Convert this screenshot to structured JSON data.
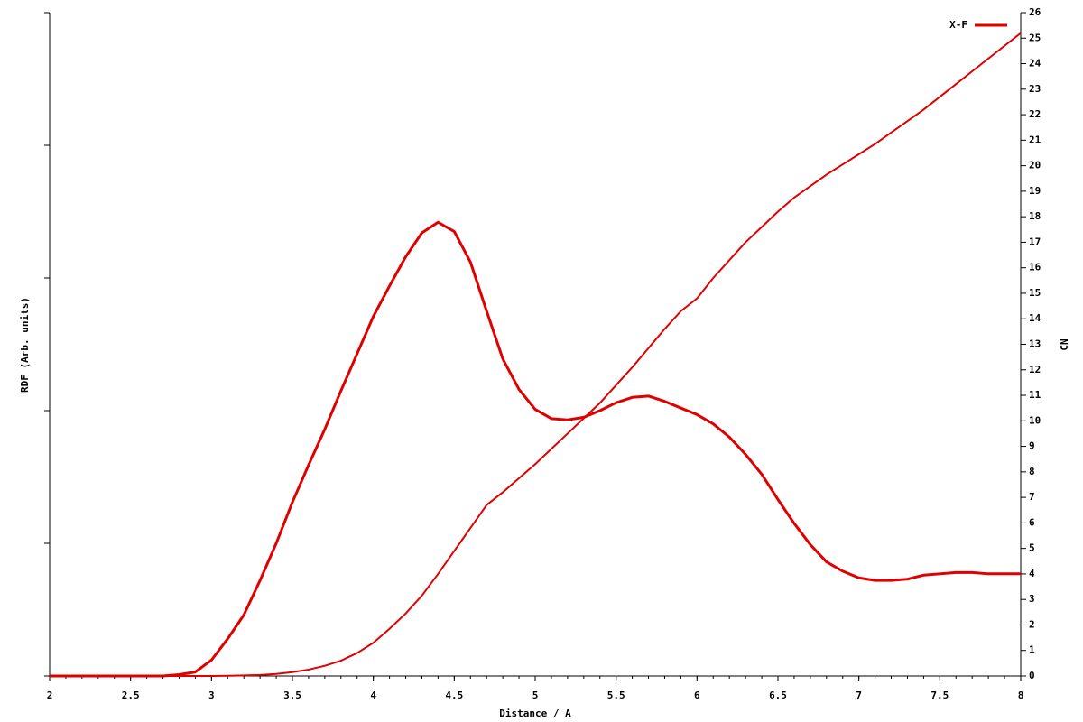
{
  "chart_data": {
    "type": "line",
    "xlabel": "Distance / A",
    "ylabel": "RDF (Arb. units)",
    "y2label": "CN",
    "x": [
      2.0,
      2.1,
      2.2,
      2.3,
      2.4,
      2.5,
      2.6,
      2.7,
      2.8,
      2.9,
      3.0,
      3.1,
      3.2,
      3.3,
      3.4,
      3.5,
      3.6,
      3.7,
      3.8,
      3.9,
      4.0,
      4.1,
      4.2,
      4.3,
      4.4,
      4.5,
      4.6,
      4.7,
      4.8,
      4.9,
      5.0,
      5.1,
      5.2,
      5.3,
      5.4,
      5.5,
      5.6,
      5.7,
      5.8,
      5.9,
      6.0,
      6.1,
      6.2,
      6.3,
      6.4,
      6.5,
      6.6,
      6.7,
      6.8,
      6.9,
      7.0,
      7.1,
      7.2,
      7.3,
      7.4,
      7.5,
      7.6,
      7.7,
      7.8,
      7.9,
      8.0
    ],
    "series": [
      {
        "name": "X-F",
        "color": "#e00000",
        "values": [
          0,
          0,
          0,
          0,
          0,
          0,
          0,
          0,
          0.01,
          0.03,
          0.12,
          0.28,
          0.46,
          0.72,
          1.0,
          1.31,
          1.59,
          1.86,
          2.15,
          2.43,
          2.71,
          2.94,
          3.16,
          3.34,
          3.42,
          3.35,
          3.12,
          2.75,
          2.39,
          2.16,
          2.01,
          1.94,
          1.93,
          1.95,
          2.0,
          2.06,
          2.1,
          2.11,
          2.07,
          2.02,
          1.97,
          1.9,
          1.8,
          1.67,
          1.52,
          1.33,
          1.15,
          0.99,
          0.86,
          0.79,
          0.74,
          0.72,
          0.72,
          0.73,
          0.76,
          0.77,
          0.78,
          0.78,
          0.77,
          0.77,
          0.77
        ]
      },
      {
        "color": "#e00000",
        "axis": "y2",
        "values": [
          0,
          0,
          0,
          0,
          0,
          0,
          0,
          0,
          0,
          0,
          0,
          0.01,
          0.02,
          0.04,
          0.08,
          0.15,
          0.25,
          0.4,
          0.6,
          0.9,
          1.3,
          1.85,
          2.45,
          3.15,
          4.0,
          4.9,
          5.8,
          6.7,
          7.2,
          7.75,
          8.3,
          8.9,
          9.5,
          10.1,
          10.7,
          11.4,
          12.1,
          12.85,
          13.6,
          14.3,
          14.8,
          15.6,
          16.3,
          17.0,
          17.6,
          18.2,
          18.75,
          19.2,
          19.65,
          20.05,
          20.45,
          20.85,
          21.3,
          21.75,
          22.2,
          22.7,
          23.2,
          23.7,
          24.2,
          24.7,
          25.2
        ]
      }
    ],
    "xlim": [
      2,
      8
    ],
    "xticks": [
      2,
      2.5,
      3,
      3.5,
      4,
      4.5,
      5,
      5.5,
      6,
      6.5,
      7,
      7.5,
      8
    ],
    "ylim": [
      0,
      5
    ],
    "yticks": [
      0,
      1,
      2,
      3,
      4,
      5
    ],
    "ytick_labels": false,
    "y2lim": [
      0,
      26
    ],
    "y2ticks": [
      0,
      1,
      2,
      3,
      4,
      5,
      6,
      7,
      8,
      9,
      10,
      11,
      12,
      13,
      14,
      15,
      16,
      17,
      18,
      19,
      20,
      21,
      22,
      23,
      24,
      25,
      26
    ],
    "legend": "upper right"
  }
}
